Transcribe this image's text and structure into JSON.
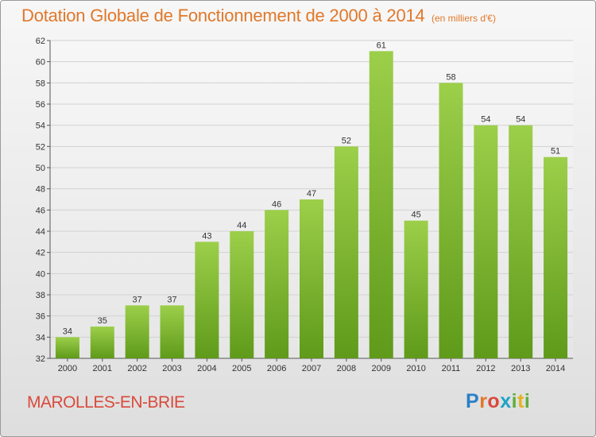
{
  "header": {
    "title": "Dotation Globale de Fonctionnement de 2000 à 2014",
    "subtitle": "(en milliers d'€)"
  },
  "footer": {
    "commune": "MAROLLES-EN-BRIE",
    "logo": [
      "P",
      "r",
      "o",
      "x",
      "i",
      "t",
      "i"
    ]
  },
  "chart_data": {
    "type": "bar",
    "title": "Dotation Globale de Fonctionnement de 2000 à 2014",
    "subtitle": "(en milliers d'€)",
    "categories": [
      "2000",
      "2001",
      "2002",
      "2003",
      "2004",
      "2005",
      "2006",
      "2007",
      "2008",
      "2009",
      "2010",
      "2011",
      "2012",
      "2013",
      "2014"
    ],
    "values": [
      34,
      35,
      37,
      37,
      43,
      44,
      46,
      47,
      52,
      61,
      45,
      58,
      54,
      54,
      51
    ],
    "ylim": [
      32,
      62
    ],
    "yticks": [
      32,
      34,
      36,
      38,
      40,
      42,
      44,
      46,
      48,
      50,
      52,
      54,
      56,
      58,
      60,
      62
    ],
    "grid": true,
    "bar_color_top": "#9ccf4a",
    "bar_color_bottom": "#5f9a1a"
  }
}
